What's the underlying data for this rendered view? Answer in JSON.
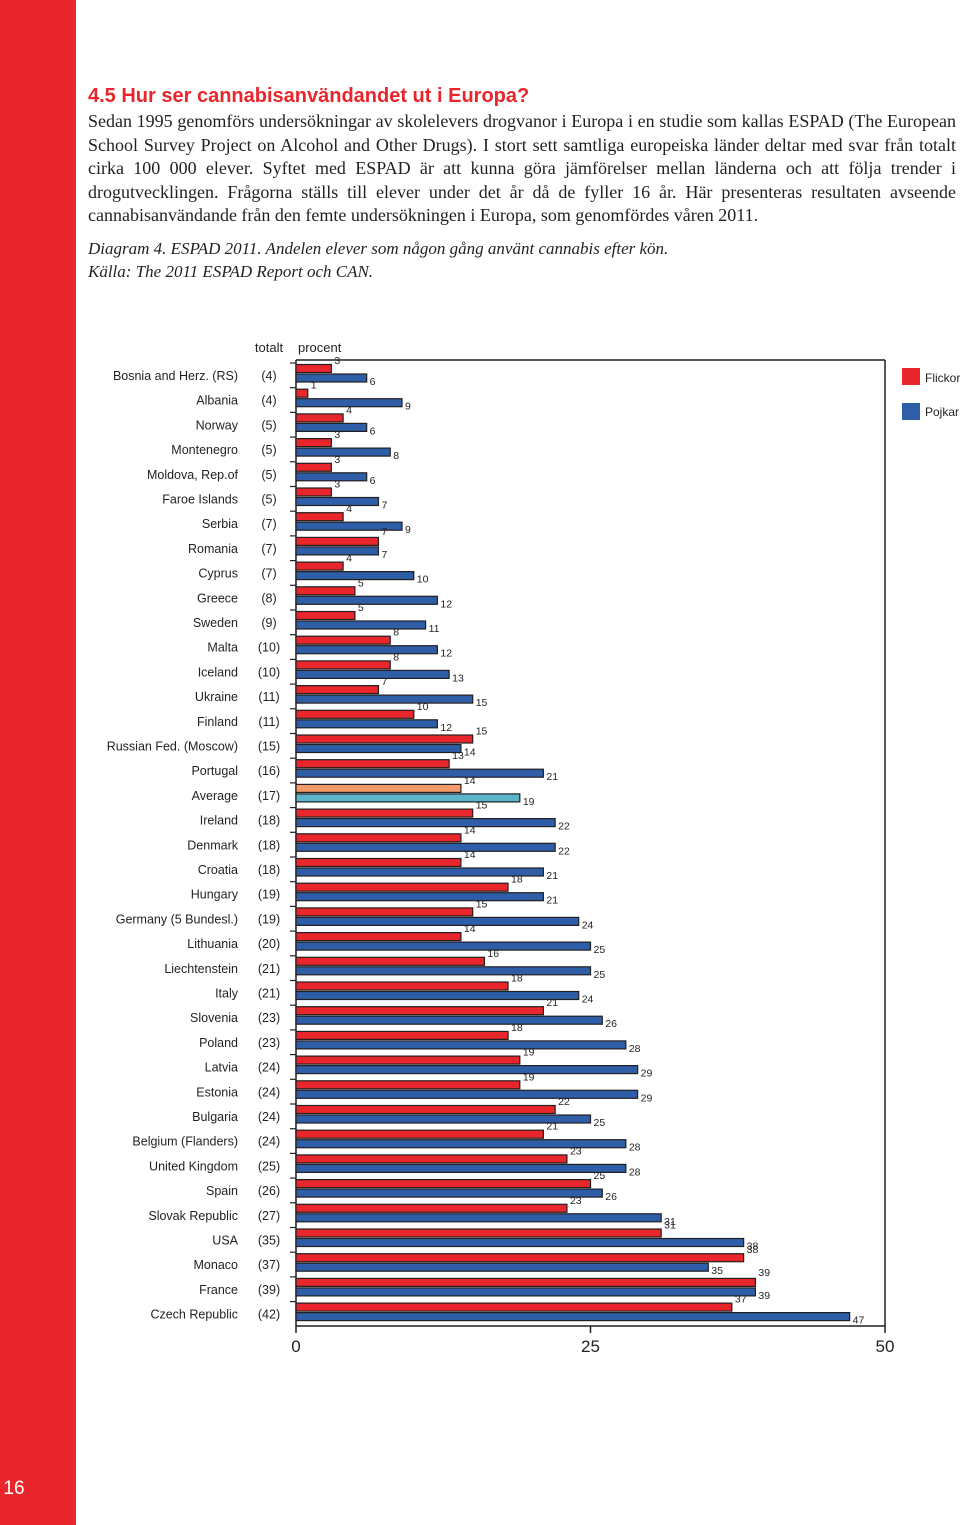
{
  "page": {
    "number": "16",
    "heading": "4.5 Hur ser cannabisanvändandet ut i Europa?",
    "body": "Sedan 1995 genomförs undersökningar av skolelevers drogvanor i Europa i en studie som kallas ESPAD (The European School Survey Project on Alcohol and Other Drugs). I stort sett samtliga europeiska länder deltar med svar från totalt cirka 100 000 elever. Syftet med ESPAD är att kunna göra jämförelser mellan länderna och att följa trender i drogutvecklingen. Frågorna ställs till elever under det år då de fyller 16 år. Här presenteras resultaten avseende cannabisanvändande från den femte undersökningen i Europa, som genomfördes våren 2011.",
    "caption_line1": "Diagram 4. ESPAD 2011. Andelen elever som någon gång använt cannabis efter kön.",
    "caption_line2": "Källa: The 2011 ESPAD Report och CAN."
  },
  "chart_data": {
    "type": "bar",
    "orientation": "horizontal",
    "header_total": "totalt",
    "header_unit": "procent",
    "xlim": [
      0,
      50
    ],
    "xticks": [
      0,
      25,
      50
    ],
    "legend_position": "top-right",
    "colors": {
      "girls": "#e8262b",
      "boys": "#2f5ea8",
      "average_girls": "#f59b6a",
      "average_boys": "#5bb6c9",
      "edge": "#231f20"
    },
    "series": [
      {
        "name": "Flickor",
        "key": "girls"
      },
      {
        "name": "Pojkar",
        "key": "boys"
      }
    ],
    "categories": [
      "Bosnia and Herz. (RS)",
      "Albania",
      "Norway",
      "Montenegro",
      "Moldova, Rep.of",
      "Faroe Islands",
      "Serbia",
      "Romania",
      "Cyprus",
      "Greece",
      "Sweden",
      "Malta",
      "Iceland",
      "Ukraine",
      "Finland",
      "Russian Fed. (Moscow)",
      "Portugal",
      "Average",
      "Ireland",
      "Denmark",
      "Croatia",
      "Hungary",
      "Germany (5 Bundesl.)",
      "Lithuania",
      "Liechtenstein",
      "Italy",
      "Slovenia",
      "Poland",
      "Latvia",
      "Estonia",
      "Bulgaria",
      "Belgium (Flanders)",
      "United Kingdom",
      "Spain",
      "Slovak Republic",
      "USA",
      "Monaco",
      "France",
      "Czech Republic"
    ],
    "totals": [
      "(4)",
      "(4)",
      "(5)",
      "(5)",
      "(5)",
      "(5)",
      "(7)",
      "(7)",
      "(7)",
      "(8)",
      "(9)",
      "(10)",
      "(10)",
      "(11)",
      "(11)",
      "(15)",
      "(16)",
      "(17)",
      "(18)",
      "(18)",
      "(18)",
      "(19)",
      "(19)",
      "(20)",
      "(21)",
      "(21)",
      "(23)",
      "(23)",
      "(24)",
      "(24)",
      "(24)",
      "(24)",
      "(25)",
      "(26)",
      "(27)",
      "(35)",
      "(37)",
      "(39)",
      "(42)"
    ],
    "girls": [
      3,
      1,
      4,
      3,
      3,
      3,
      4,
      7,
      4,
      5,
      5,
      8,
      8,
      7,
      10,
      15,
      13,
      14,
      15,
      14,
      14,
      18,
      15,
      14,
      16,
      18,
      21,
      18,
      19,
      19,
      22,
      21,
      23,
      25,
      23,
      31,
      38,
      39,
      37
    ],
    "boys": [
      6,
      9,
      6,
      8,
      6,
      7,
      9,
      7,
      10,
      12,
      11,
      12,
      13,
      15,
      12,
      14,
      21,
      19,
      22,
      22,
      21,
      21,
      24,
      25,
      25,
      24,
      26,
      28,
      29,
      29,
      25,
      28,
      28,
      26,
      31,
      38,
      35,
      39,
      47
    ]
  }
}
